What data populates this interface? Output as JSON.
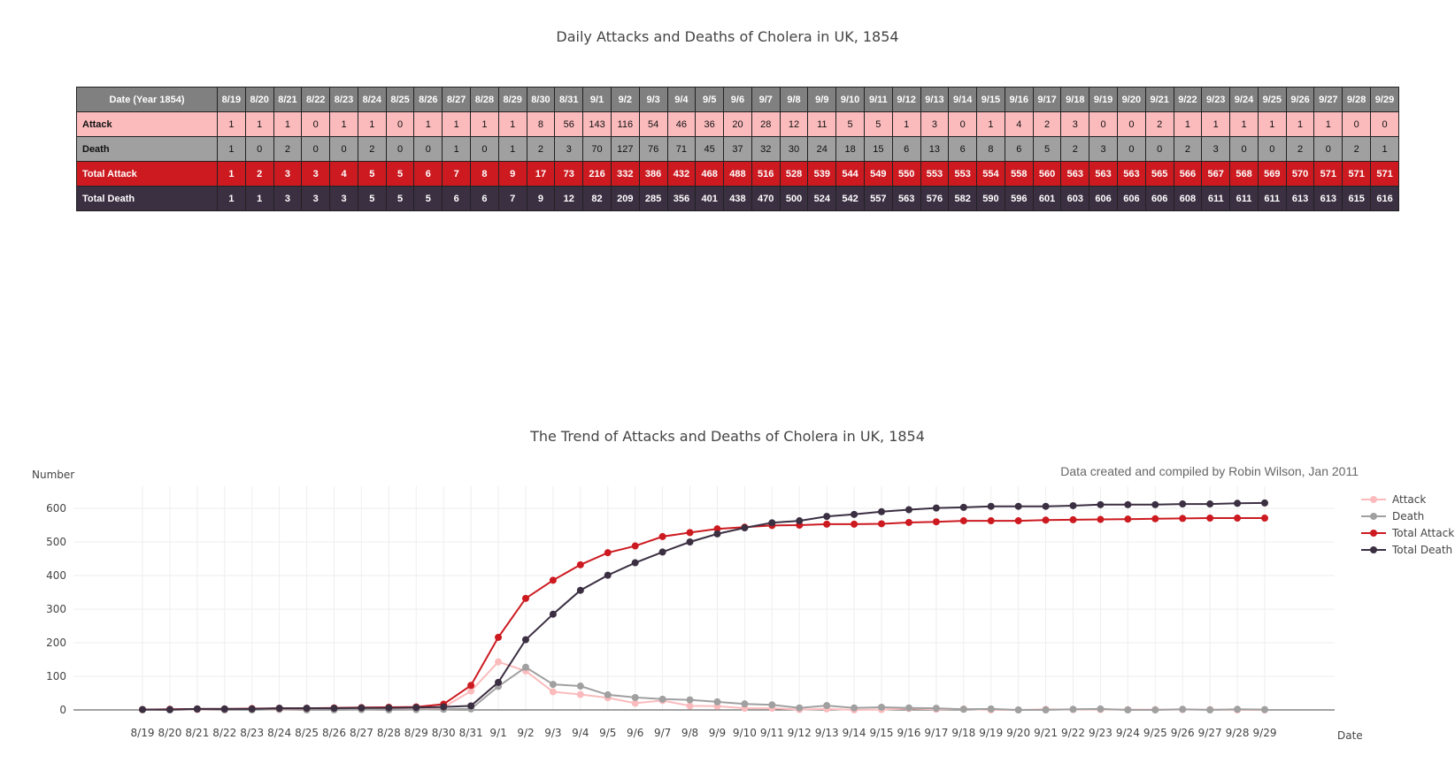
{
  "table": {
    "title": "Daily Attacks and Deaths of Cholera in UK, 1854",
    "header_label": "Date (Year 1854)",
    "rows": [
      {
        "key": "attack",
        "label": "Attack"
      },
      {
        "key": "death",
        "label": "Death"
      },
      {
        "key": "tattack",
        "label": "Total Attack"
      },
      {
        "key": "tdeath",
        "label": "Total Death"
      }
    ]
  },
  "chart_data": {
    "type": "line",
    "title": "The Trend of Attacks and Deaths of Cholera in UK, 1854",
    "subtitle": "Data created and compiled by Robin Wilson, Jan 2011",
    "xlabel": "Date",
    "ylabel": "Number",
    "ylim": [
      0,
      650
    ],
    "yticks": [
      0,
      100,
      200,
      300,
      400,
      500,
      600
    ],
    "grid": true,
    "legend_position": "top-right",
    "categories": [
      "8/19",
      "8/20",
      "8/21",
      "8/22",
      "8/23",
      "8/24",
      "8/25",
      "8/26",
      "8/27",
      "8/28",
      "8/29",
      "8/30",
      "8/31",
      "9/1",
      "9/2",
      "9/3",
      "9/4",
      "9/5",
      "9/6",
      "9/7",
      "9/8",
      "9/9",
      "9/10",
      "9/11",
      "9/12",
      "9/13",
      "9/14",
      "9/15",
      "9/16",
      "9/17",
      "9/18",
      "9/19",
      "9/20",
      "9/21",
      "9/22",
      "9/23",
      "9/24",
      "9/25",
      "9/26",
      "9/27",
      "9/28",
      "9/29"
    ],
    "series": [
      {
        "name": "Attack",
        "color": "#fbbbbd",
        "values": [
          1,
          1,
          1,
          0,
          1,
          1,
          0,
          1,
          1,
          1,
          1,
          8,
          56,
          143,
          116,
          54,
          46,
          36,
          20,
          28,
          12,
          11,
          5,
          5,
          1,
          3,
          0,
          1,
          4,
          2,
          3,
          0,
          0,
          2,
          1,
          1,
          1,
          1,
          1,
          1,
          0,
          0
        ]
      },
      {
        "name": "Death",
        "color": "#a0a0a0",
        "values": [
          1,
          0,
          2,
          0,
          0,
          2,
          0,
          0,
          1,
          0,
          1,
          2,
          3,
          70,
          127,
          76,
          71,
          45,
          37,
          32,
          30,
          24,
          18,
          15,
          6,
          13,
          6,
          8,
          6,
          5,
          2,
          3,
          0,
          0,
          2,
          3,
          0,
          0,
          2,
          0,
          2,
          1
        ]
      },
      {
        "name": "Total Attack",
        "color": "#cc1a20",
        "values": [
          1,
          2,
          3,
          3,
          4,
          5,
          5,
          6,
          7,
          8,
          9,
          17,
          73,
          216,
          332,
          386,
          432,
          468,
          488,
          516,
          528,
          539,
          544,
          549,
          550,
          553,
          553,
          554,
          558,
          560,
          563,
          563,
          563,
          565,
          566,
          567,
          568,
          569,
          570,
          571,
          571,
          571
        ]
      },
      {
        "name": "Total Death",
        "color": "#3b2f42",
        "values": [
          1,
          1,
          3,
          3,
          3,
          5,
          5,
          5,
          6,
          6,
          7,
          9,
          12,
          82,
          209,
          285,
          356,
          401,
          438,
          470,
          500,
          524,
          542,
          557,
          563,
          576,
          582,
          590,
          596,
          601,
          603,
          606,
          606,
          606,
          608,
          611,
          611,
          611,
          613,
          613,
          615,
          616
        ]
      }
    ]
  }
}
